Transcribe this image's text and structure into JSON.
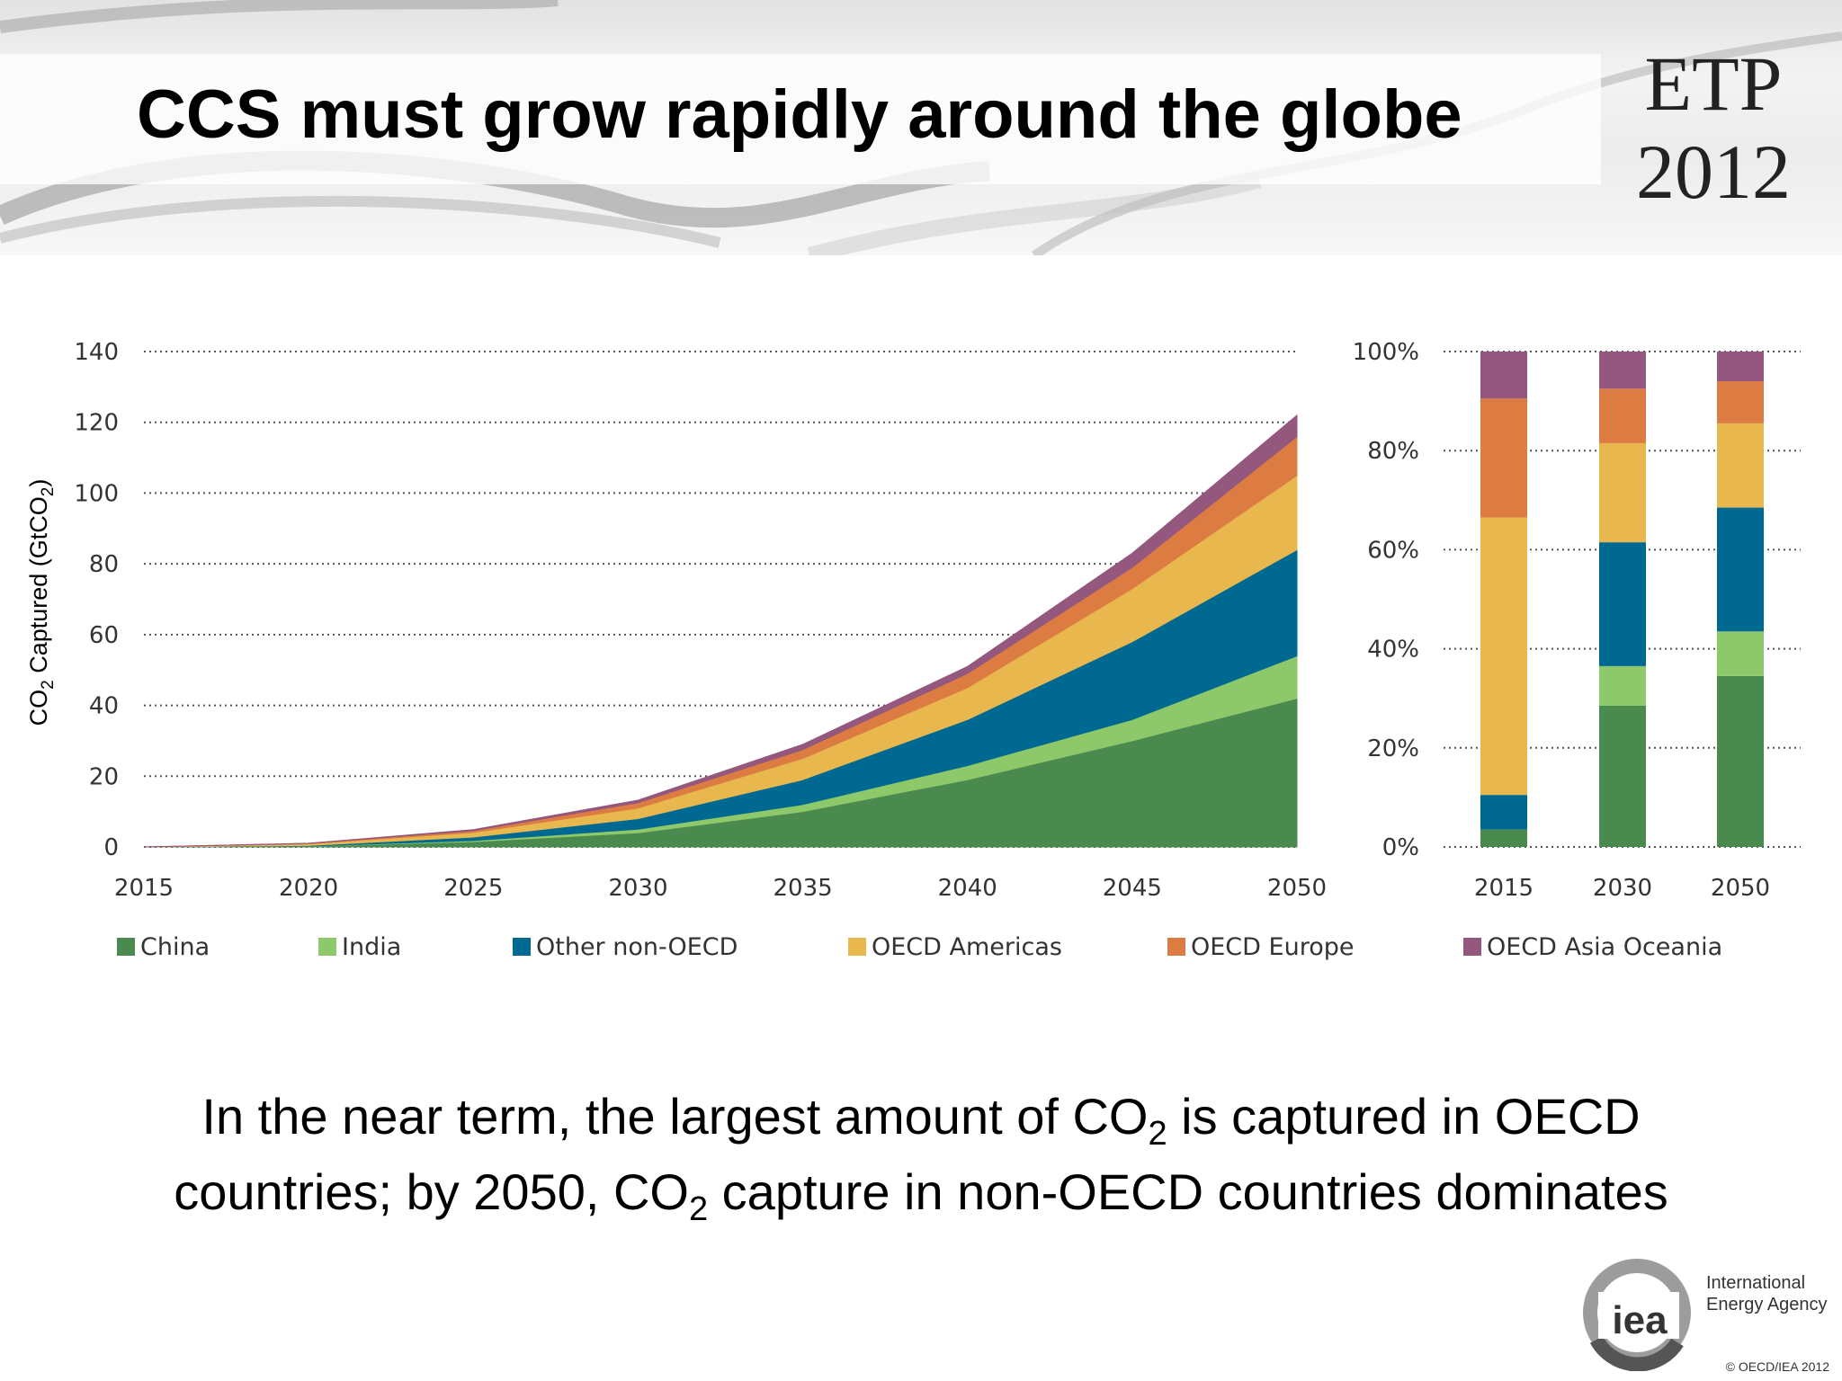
{
  "slide": {
    "title": "CCS must grow rapidly around the globe",
    "badge_line1": "ETP",
    "badge_line2": "2012",
    "caption_line1_pre": "In the near term, the largest amount of CO",
    "caption_line1_sub": "2",
    "caption_line1_post": " is captured in OECD",
    "caption_line2_pre": "countries; by 2050, CO",
    "caption_line2_sub": "2",
    "caption_line2_post": " capture in non-OECD countries dominates",
    "org_name_line1": "International",
    "org_name_line2": "Energy Agency",
    "logo_text": "iea",
    "copyright": "© OECD/IEA 2012"
  },
  "legend": [
    {
      "label": "China",
      "color": "#4a8a4f"
    },
    {
      "label": "India",
      "color": "#8dc86a"
    },
    {
      "label": "Other non-OECD",
      "color": "#006991"
    },
    {
      "label": "OECD Americas",
      "color": "#e8b84e"
    },
    {
      "label": "OECD Europe",
      "color": "#dc7c43"
    },
    {
      "label": "OECD Asia Oceania",
      "color": "#94577d"
    }
  ],
  "chart_data": [
    {
      "type": "area",
      "stacked": true,
      "ylabel_pre": "CO",
      "ylabel_sub": "2",
      "ylabel_mid": " Captured (GtCO",
      "ylabel_sub2": "2",
      "ylabel_post": ")",
      "x": [
        2015,
        2020,
        2025,
        2030,
        2035,
        2040,
        2045,
        2050
      ],
      "xlim": [
        2015,
        2050
      ],
      "ylim": [
        0,
        140
      ],
      "yticks": [
        0,
        20,
        40,
        60,
        80,
        100,
        120,
        140
      ],
      "xticks": [
        2015,
        2020,
        2025,
        2030,
        2035,
        2040,
        2045,
        2050
      ],
      "grid": "dotted horizontal",
      "series": [
        {
          "name": "China",
          "color": "#4a8a4f",
          "values": [
            0,
            0.2,
            1.5,
            4,
            10,
            19,
            30,
            42
          ]
        },
        {
          "name": "India",
          "color": "#8dc86a",
          "values": [
            0,
            0.05,
            0.3,
            1,
            2,
            4,
            6,
            12
          ]
        },
        {
          "name": "Other non-OECD",
          "color": "#006991",
          "values": [
            0,
            0.15,
            1,
            3,
            7,
            13,
            22,
            30
          ]
        },
        {
          "name": "OECD Americas",
          "color": "#e8b84e",
          "values": [
            0,
            0.5,
            1.3,
            3,
            6,
            9,
            15,
            21
          ]
        },
        {
          "name": "OECD Europe",
          "color": "#dc7c43",
          "values": [
            0,
            0.1,
            0.5,
            1.5,
            2.5,
            4,
            6,
            11
          ]
        },
        {
          "name": "OECD Asia Oceania",
          "color": "#94577d",
          "values": [
            0,
            0.05,
            0.3,
            0.7,
            1.5,
            2,
            4,
            6
          ]
        }
      ]
    },
    {
      "type": "bar",
      "stacked": true,
      "percent": true,
      "categories": [
        "2015",
        "2030",
        "2050"
      ],
      "ylim": [
        0,
        100
      ],
      "yticks": [
        "0%",
        "20%",
        "40%",
        "60%",
        "80%",
        "100%"
      ],
      "grid": "dotted horizontal",
      "series": [
        {
          "name": "China",
          "color": "#4a8a4f",
          "values": [
            3.5,
            28.5,
            34.5
          ]
        },
        {
          "name": "India",
          "color": "#8dc86a",
          "values": [
            0,
            8,
            9
          ]
        },
        {
          "name": "Other non-OECD",
          "color": "#006991",
          "values": [
            7,
            25,
            25
          ]
        },
        {
          "name": "OECD Americas",
          "color": "#e8b84e",
          "values": [
            56,
            20,
            17
          ]
        },
        {
          "name": "OECD Europe",
          "color": "#dc7c43",
          "values": [
            24,
            11,
            8.5
          ]
        },
        {
          "name": "OECD Asia Oceania",
          "color": "#94577d",
          "values": [
            9.5,
            7.5,
            6
          ]
        }
      ]
    }
  ]
}
